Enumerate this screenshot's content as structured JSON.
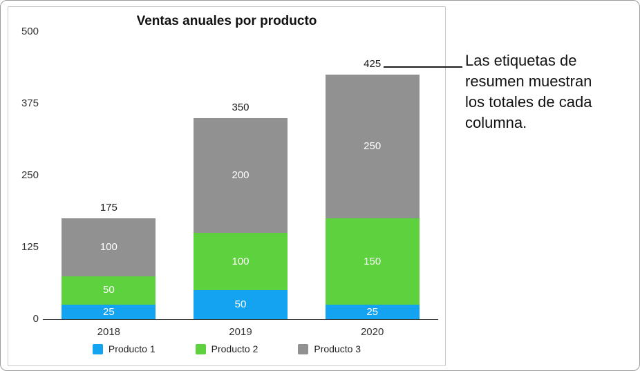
{
  "chart_data": {
    "type": "bar",
    "stacked": true,
    "title": "Ventas anuales por producto",
    "categories": [
      "2018",
      "2019",
      "2020"
    ],
    "series": [
      {
        "name": "Producto 1",
        "color": "#14A3F0",
        "values": [
          25,
          50,
          25
        ]
      },
      {
        "name": "Producto 2",
        "color": "#5DD23E",
        "values": [
          50,
          100,
          150
        ]
      },
      {
        "name": "Producto 3",
        "color": "#919191",
        "values": [
          100,
          200,
          250
        ]
      }
    ],
    "totals": [
      175,
      350,
      425
    ],
    "y_ticks": [
      0,
      125,
      250,
      375,
      500
    ],
    "ylim": [
      0,
      500
    ],
    "xlabel": "",
    "ylabel": "",
    "legend_position": "bottom",
    "grid": false,
    "segment_label_color": "#ffffff"
  },
  "annotation": {
    "text": "Las etiquetas de resumen muestran los totales de cada columna.",
    "lines": [
      "Las etiquetas de",
      "resumen muestran",
      "los totales de cada",
      "columna."
    ]
  }
}
